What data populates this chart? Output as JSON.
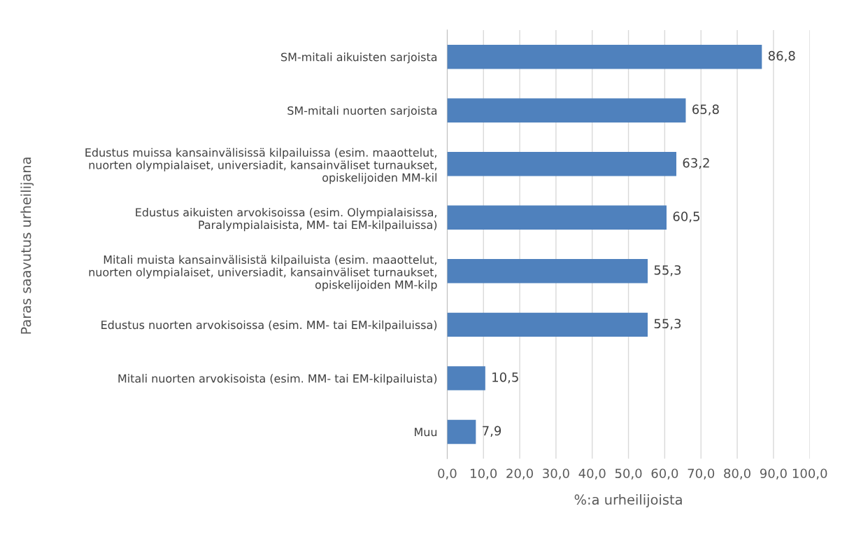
{
  "chart_data": {
    "type": "bar",
    "orientation": "horizontal",
    "categories": [
      "SM-mitali aikuisten sarjoista",
      "SM-mitali nuorten sarjoista",
      "Edustus muissa kansainvälisissä kilpailuissa (esim. maaottelut,\nnuorten olympialaiset, universiadit, kansainväliset turnaukset,\nopiskelijoiden MM-kil",
      "Edustus aikuisten arvokisoissa (esim. Olympialaisissa,\nParalympialaisista, MM- tai EM-kilpailuissa)",
      "Mitali muista kansainvälisistä kilpailuista (esim. maaottelut,\nnuorten olympialaiset, universiadit, kansainväliset turnaukset,\nopiskelijoiden MM-kilp",
      "Edustus nuorten arvokisoissa (esim. MM- tai EM-kilpailuissa)",
      "Mitali nuorten arvokisoista (esim. MM- tai EM-kilpailuista)",
      "Muu"
    ],
    "values": [
      86.8,
      65.8,
      63.2,
      60.5,
      55.3,
      55.3,
      10.5,
      7.9
    ],
    "value_labels": [
      "86,8",
      "65,8",
      "63,2",
      "60,5",
      "55,3",
      "55,3",
      "10,5",
      "7,9"
    ],
    "color": "#4f81bd",
    "xlim": [
      0,
      100
    ],
    "xticks": [
      {
        "value": 0,
        "label": "0,0"
      },
      {
        "value": 10,
        "label": "10,0"
      },
      {
        "value": 20,
        "label": "20,0"
      },
      {
        "value": 30,
        "label": "30,0"
      },
      {
        "value": 40,
        "label": "40,0"
      },
      {
        "value": 50,
        "label": "50,0"
      },
      {
        "value": 60,
        "label": "60,0"
      },
      {
        "value": 70,
        "label": "70,0"
      },
      {
        "value": 80,
        "label": "80,0"
      },
      {
        "value": 90,
        "label": "90,0"
      },
      {
        "value": 100,
        "label": "100,0"
      }
    ],
    "xlabel": "%:a urheilijoista",
    "ylabel": "Paras saavutus urheilijana",
    "grid": "x"
  }
}
